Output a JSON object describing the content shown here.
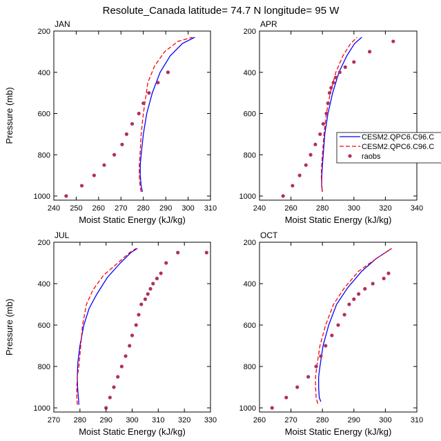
{
  "title": "Resolute_Canada  latitude= 74.7 N longitude= 95 W",
  "legend": {
    "entries": [
      {
        "label": "CESM2.QPC6.C96.C",
        "style": "solid",
        "color": "#0000ff"
      },
      {
        "label": "CESM2.QPC6.C96.C",
        "style": "dashed",
        "color": "#ff0000"
      },
      {
        "label": "raobs",
        "style": "marker",
        "color": "#b03060"
      }
    ]
  },
  "chart_data": [
    {
      "type": "line",
      "panel_label": "JAN",
      "xlabel": "Moist Static Energy (kJ/kg)",
      "ylabel": "Pressure (mb)",
      "xlim": [
        240,
        310
      ],
      "xticks": [
        240,
        250,
        260,
        270,
        280,
        290,
        300,
        310
      ],
      "ylim": [
        200,
        1020
      ],
      "yticks": [
        200,
        400,
        600,
        800,
        1000
      ],
      "y_inverted": true,
      "series": [
        {
          "name": "CESM2.QPC6.C96.C",
          "style": "solid",
          "color": "#0000ff",
          "x": [
            279.6,
            279.0,
            278.6,
            278.6,
            279.0,
            280.0,
            281.5,
            284.0,
            287.5,
            292.0,
            297.5,
            303.0
          ],
          "y": [
            980,
            950,
            900,
            850,
            800,
            700,
            600,
            500,
            400,
            320,
            260,
            230
          ]
        },
        {
          "name": "CESM2.QPC6.C96.C",
          "style": "dashed",
          "color": "#ff0000",
          "x": [
            279.0,
            278.5,
            278.2,
            278.2,
            278.5,
            279.0,
            280.0,
            282.0,
            285.0,
            289.5,
            295.5,
            302.0
          ],
          "y": [
            980,
            950,
            900,
            850,
            800,
            700,
            600,
            450,
            370,
            300,
            250,
            230
          ]
        },
        {
          "name": "raobs",
          "style": "marker",
          "color": "#b03060",
          "x": [
            245.5,
            252.5,
            258.0,
            262.5,
            267.0,
            270.5,
            272.5,
            275.0,
            278.0,
            280.0,
            282.5,
            286.5,
            291.0
          ],
          "y": [
            1000,
            950,
            900,
            850,
            800,
            750,
            700,
            650,
            600,
            550,
            500,
            450,
            400
          ]
        }
      ]
    },
    {
      "type": "line",
      "panel_label": "APR",
      "xlabel": "Moist Static Energy (kJ/kg)",
      "ylabel": "",
      "xlim": [
        240,
        340
      ],
      "xticks": [
        240,
        260,
        280,
        300,
        320,
        340
      ],
      "ylim": [
        200,
        1020
      ],
      "yticks": [
        200,
        400,
        600,
        800,
        1000
      ],
      "y_inverted": true,
      "series": [
        {
          "name": "CESM2.QPC6.C96.C",
          "style": "solid",
          "color": "#0000ff",
          "x": [
            280.0,
            279.5,
            279.6,
            280.0,
            280.5,
            281.5,
            283.5,
            286.5,
            290.5,
            295.5,
            300.5,
            305.0
          ],
          "y": [
            980,
            950,
            900,
            850,
            800,
            700,
            600,
            500,
            400,
            320,
            260,
            230
          ]
        },
        {
          "name": "CESM2.QPC6.C96.C",
          "style": "dashed",
          "color": "#ff0000",
          "x": [
            280.0,
            279.5,
            279.3,
            279.5,
            280.0,
            281.0,
            282.5,
            285.0,
            288.5,
            293.0,
            298.0,
            302.0
          ],
          "y": [
            980,
            950,
            900,
            850,
            800,
            700,
            600,
            500,
            400,
            320,
            260,
            230
          ]
        },
        {
          "name": "raobs",
          "style": "marker",
          "color": "#b03060",
          "x": [
            255.0,
            261.0,
            265.5,
            269.5,
            272.5,
            275.5,
            278.5,
            280.5,
            282.5,
            283.5,
            284.5,
            285.5,
            287.0,
            288.5,
            291.0,
            294.5,
            300.0,
            310.0,
            325.0
          ],
          "y": [
            1000,
            950,
            900,
            850,
            800,
            750,
            700,
            650,
            600,
            550,
            500,
            475,
            450,
            425,
            400,
            375,
            350,
            300,
            250
          ]
        }
      ]
    },
    {
      "type": "line",
      "panel_label": "JUL",
      "xlabel": "Moist Static Energy (kJ/kg)",
      "ylabel": "Pressure (mb)",
      "xlim": [
        270,
        330
      ],
      "xticks": [
        270,
        280,
        290,
        300,
        310,
        320,
        330
      ],
      "ylim": [
        200,
        1020
      ],
      "yticks": [
        200,
        400,
        600,
        800,
        1000
      ],
      "y_inverted": true,
      "series": [
        {
          "name": "CESM2.QPC6.C96.C",
          "style": "solid",
          "color": "#0000ff",
          "x": [
            279.6,
            279.4,
            279.1,
            279.0,
            279.2,
            280.0,
            281.5,
            283.5,
            286.5,
            290.5,
            295.5,
            299.5,
            302.0
          ],
          "y": [
            985,
            950,
            900,
            850,
            780,
            700,
            600,
            520,
            450,
            370,
            300,
            250,
            230
          ]
        },
        {
          "name": "CESM2.QPC6.C96.C",
          "style": "dashed",
          "color": "#ff0000",
          "x": [
            279.0,
            278.8,
            278.8,
            279.0,
            279.6,
            280.3,
            281.0,
            282.5,
            285.0,
            289.0,
            294.5,
            299.0,
            301.5
          ],
          "y": [
            985,
            950,
            900,
            850,
            800,
            700,
            600,
            500,
            430,
            360,
            300,
            250,
            230
          ]
        },
        {
          "name": "raobs",
          "style": "marker",
          "color": "#b03060",
          "x": [
            290.0,
            291.5,
            293.0,
            294.5,
            296.0,
            297.5,
            299.0,
            300.0,
            301.5,
            302.5,
            303.5,
            305.0,
            306.0,
            307.0,
            308.0,
            309.5,
            311.0,
            313.0,
            317.5,
            328.5
          ],
          "y": [
            1000,
            950,
            900,
            850,
            800,
            750,
            700,
            650,
            600,
            550,
            500,
            475,
            450,
            425,
            400,
            375,
            350,
            300,
            250,
            250
          ]
        }
      ]
    },
    {
      "type": "line",
      "panel_label": "OCT",
      "xlabel": "Moist Static Energy (kJ/kg)",
      "ylabel": "",
      "xlim": [
        260,
        310
      ],
      "xticks": [
        260,
        270,
        280,
        290,
        300,
        310
      ],
      "ylim": [
        200,
        1020
      ],
      "yticks": [
        200,
        400,
        600,
        800,
        1000
      ],
      "y_inverted": true,
      "series": [
        {
          "name": "CESM2.QPC6.C96.C",
          "style": "solid",
          "color": "#0000ff",
          "x": [
            279.5,
            279.0,
            278.8,
            278.8,
            279.2,
            280.2,
            282.0,
            284.5,
            288.0,
            292.5,
            297.0,
            302.0
          ],
          "y": [
            970,
            950,
            900,
            850,
            800,
            700,
            600,
            500,
            420,
            340,
            280,
            230
          ]
        },
        {
          "name": "CESM2.QPC6.C96.C",
          "style": "dashed",
          "color": "#ff0000",
          "x": [
            278.5,
            278.0,
            277.8,
            277.8,
            278.2,
            279.2,
            281.0,
            283.5,
            287.0,
            291.5,
            297.0,
            302.0
          ],
          "y": [
            980,
            950,
            900,
            850,
            800,
            700,
            600,
            500,
            420,
            340,
            280,
            230
          ]
        },
        {
          "name": "raobs",
          "style": "marker",
          "color": "#b03060",
          "x": [
            264.0,
            268.5,
            272.0,
            275.5,
            278.0,
            279.5,
            281.0,
            283.0,
            285.0,
            287.0,
            288.5,
            290.0,
            291.5,
            293.5,
            296.0,
            299.5,
            301.0
          ],
          "y": [
            1000,
            950,
            900,
            850,
            800,
            750,
            700,
            650,
            600,
            550,
            500,
            475,
            450,
            425,
            400,
            375,
            350
          ]
        }
      ]
    }
  ]
}
